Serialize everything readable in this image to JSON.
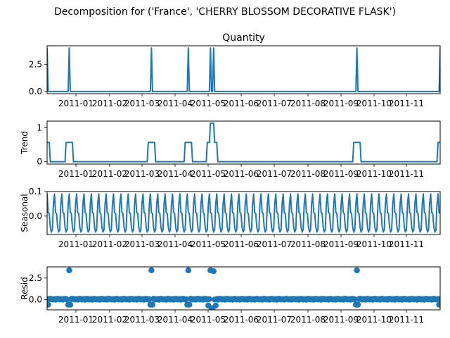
{
  "title": "Decomposition for ('France', 'CHERRY BLOSSOM  DECORATIVE FLASK')",
  "colors": {
    "series": "#1f77b4",
    "axes": "#000000",
    "background": "#ffffff"
  },
  "chart_data": [
    {
      "type": "line",
      "title": "Quantity",
      "ylabel": "",
      "x_start": "2010-12-01",
      "x_end": "2011-12-09",
      "xticklabels": [
        "2011-01",
        "2011-02",
        "2011-03",
        "2011-04",
        "2011-05",
        "2011-06",
        "2011-07",
        "2011-08",
        "2011-09",
        "2011-10",
        "2011-11"
      ],
      "yticks": [
        0.0,
        2.5
      ],
      "yticklabels": [
        "0.0",
        "2.5"
      ],
      "ylim": [
        -0.2,
        4.2
      ],
      "baseline": 0,
      "spikes": [
        {
          "date": "2010-12-01",
          "value": 4
        },
        {
          "date": "2010-12-22",
          "value": 4
        },
        {
          "date": "2011-03-10",
          "value": 4
        },
        {
          "date": "2011-04-14",
          "value": 4
        },
        {
          "date": "2011-05-05",
          "value": 4
        },
        {
          "date": "2011-05-08",
          "value": 4
        },
        {
          "date": "2011-09-21",
          "value": 4
        },
        {
          "date": "2011-12-09",
          "value": 4
        }
      ]
    },
    {
      "type": "line",
      "title": "",
      "ylabel": "Trend",
      "x_start": "2010-12-01",
      "x_end": "2011-12-09",
      "xticklabels": [
        "2011-01",
        "2011-02",
        "2011-03",
        "2011-04",
        "2011-05",
        "2011-06",
        "2011-07",
        "2011-08",
        "2011-09",
        "2011-10",
        "2011-11"
      ],
      "yticks": [
        0,
        1
      ],
      "yticklabels": [
        "0",
        "1"
      ],
      "ylim": [
        -0.07,
        1.2
      ],
      "baseline": 0,
      "plateaus": [
        {
          "start": "2010-12-01",
          "end": "2010-12-03",
          "value": 0.57
        },
        {
          "start": "2010-12-19",
          "end": "2010-12-25",
          "value": 0.57
        },
        {
          "start": "2011-03-07",
          "end": "2011-03-13",
          "value": 0.57
        },
        {
          "start": "2011-04-11",
          "end": "2011-04-17",
          "value": 0.57
        },
        {
          "start": "2011-05-02",
          "end": "2011-05-04",
          "value": 0.57
        },
        {
          "start": "2011-05-05",
          "end": "2011-05-08",
          "value": 1.14
        },
        {
          "start": "2011-05-09",
          "end": "2011-05-11",
          "value": 0.57
        },
        {
          "start": "2011-09-18",
          "end": "2011-09-24",
          "value": 0.57
        },
        {
          "start": "2011-12-07",
          "end": "2011-12-09",
          "value": 0.57
        }
      ]
    },
    {
      "type": "line",
      "title": "",
      "ylabel": "Seasonal",
      "x_start": "2010-12-01",
      "x_end": "2011-12-09",
      "xticklabels": [
        "2011-01",
        "2011-02",
        "2011-03",
        "2011-04",
        "2011-05",
        "2011-06",
        "2011-07",
        "2011-08",
        "2011-09",
        "2011-10",
        "2011-11"
      ],
      "yticks": [
        0.0,
        0.1
      ],
      "yticklabels": [
        "0.0",
        "0.1"
      ],
      "ylim": [
        -0.075,
        0.1
      ],
      "period_days": 7,
      "weekly_pattern": [
        0.09,
        0.015,
        0.01,
        -0.045,
        -0.065,
        -0.055,
        0.05
      ]
    },
    {
      "type": "scatter",
      "title": "",
      "ylabel": "Resid",
      "x_start": "2010-12-01",
      "x_end": "2011-12-09",
      "xticklabels": [
        "2011-01",
        "2011-02",
        "2011-03",
        "2011-04",
        "2011-05",
        "2011-06",
        "2011-07",
        "2011-08",
        "2011-09",
        "2011-10",
        "2011-11"
      ],
      "yticks": [
        0.0,
        2.5
      ],
      "yticklabels": [
        "0.0",
        "2.5"
      ],
      "ylim": [
        -1.2,
        3.8
      ],
      "zero_line": true,
      "outliers": [
        {
          "date": "2010-12-22",
          "value": 3.4
        },
        {
          "date": "2011-03-10",
          "value": 3.4
        },
        {
          "date": "2011-04-14",
          "value": 3.4
        },
        {
          "date": "2011-05-05",
          "value": 3.4
        },
        {
          "date": "2011-05-08",
          "value": 3.3
        },
        {
          "date": "2011-09-21",
          "value": 3.4
        }
      ],
      "dips": [
        {
          "date": "2010-12-02",
          "value": -0.6
        },
        {
          "date": "2010-12-21",
          "value": -0.6
        },
        {
          "date": "2010-12-23",
          "value": -0.6
        },
        {
          "date": "2011-03-09",
          "value": -0.6
        },
        {
          "date": "2011-03-11",
          "value": -0.6
        },
        {
          "date": "2011-04-13",
          "value": -0.6
        },
        {
          "date": "2011-04-15",
          "value": -0.6
        },
        {
          "date": "2011-05-03",
          "value": -0.7
        },
        {
          "date": "2011-05-06",
          "value": -1.0
        },
        {
          "date": "2011-05-07",
          "value": -1.0
        },
        {
          "date": "2011-05-10",
          "value": -0.7
        },
        {
          "date": "2011-09-20",
          "value": -0.6
        },
        {
          "date": "2011-09-22",
          "value": -0.6
        },
        {
          "date": "2011-12-08",
          "value": -0.6
        }
      ]
    }
  ]
}
